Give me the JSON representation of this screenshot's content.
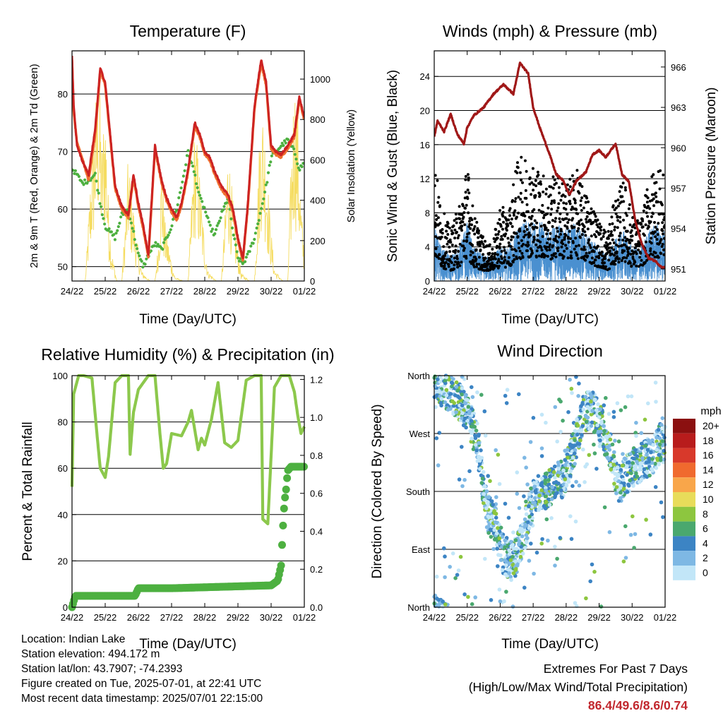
{
  "colors": {
    "temp_2m": "#cc2222",
    "temp_9m": "#f07030",
    "dewpoint": "#4db040",
    "solar": "#f5dc60",
    "wind": "#4a90d0",
    "gust": "#000000",
    "pressure": "#a01818",
    "rh": "#8cc84c",
    "precip": "#4db040",
    "extremes": "#c1272d"
  },
  "time_axis": {
    "label": "Time (Day/UTC)",
    "ticks": [
      "24/22",
      "25/22",
      "26/22",
      "27/22",
      "28/22",
      "29/22",
      "30/22",
      "01/22"
    ]
  },
  "chart_data": [
    {
      "id": "temperature",
      "type": "line",
      "title": "Temperature (F)",
      "ylabel": "2m & 9m T (Red, Orange) & 2m Td (Green)",
      "y2label": "Solar Insolation (Yellow)",
      "ylim": [
        47.5,
        87.5
      ],
      "y2lim": [
        0,
        1140
      ],
      "yticks": [
        50,
        60,
        70,
        80
      ],
      "y2ticks": [
        0,
        200,
        400,
        600,
        800,
        1000
      ],
      "series": [
        {
          "key": "temp_2m",
          "color": "temp_2m",
          "x": [
            0,
            0.05,
            0.15,
            0.3,
            0.5,
            0.7,
            0.85,
            1.0,
            1.15,
            1.3,
            1.5,
            1.7,
            1.85,
            2.0,
            2.15,
            2.3,
            2.5,
            2.7,
            2.85,
            3.0,
            3.15,
            3.3,
            3.5,
            3.7,
            3.85,
            4.0,
            4.15,
            4.3,
            4.5,
            4.7,
            4.85,
            5.0,
            5.15,
            5.3,
            5.5,
            5.7,
            5.85,
            6.0,
            6.15,
            6.3,
            6.5,
            6.7,
            6.85,
            7.0
          ],
          "y": [
            86.5,
            78,
            71,
            68.5,
            66,
            74,
            84.5,
            82,
            73,
            64,
            60.5,
            59,
            66,
            61,
            57,
            52,
            71,
            65,
            62,
            60,
            58.5,
            61,
            67,
            75,
            73,
            70,
            69,
            66.5,
            64,
            62.5,
            60,
            55,
            51.5,
            61,
            78,
            86,
            82,
            71,
            70,
            69.5,
            71,
            73,
            79.5,
            76
          ]
        },
        {
          "key": "temp_9m",
          "color": "temp_9m",
          "x": [
            0,
            0.05,
            0.15,
            0.3,
            0.5,
            0.7,
            0.85,
            1.0,
            1.15,
            1.3,
            1.5,
            1.7,
            1.85,
            2.0,
            2.15,
            2.3,
            2.5,
            2.7,
            2.85,
            3.0,
            3.15,
            3.3,
            3.5,
            3.7,
            3.85,
            4.0,
            4.15,
            4.3,
            4.5,
            4.7,
            4.85,
            5.0,
            5.15,
            5.3,
            5.5,
            5.7,
            5.85,
            6.0,
            6.15,
            6.3,
            6.5,
            6.7,
            6.85,
            7.0
          ],
          "y": [
            86,
            77,
            71.5,
            69,
            65,
            73,
            84,
            81.5,
            72.5,
            63.5,
            60,
            58.5,
            65.5,
            60.5,
            56.5,
            51.5,
            70.5,
            64.5,
            61.5,
            59.5,
            58,
            60.5,
            66.5,
            74.5,
            72.5,
            69.5,
            68.5,
            66,
            63.5,
            62,
            59.5,
            54.5,
            51,
            60.5,
            77.5,
            85.5,
            81.5,
            70.5,
            69.5,
            69,
            70.5,
            72.5,
            79,
            75.5
          ]
        },
        {
          "key": "dewpoint",
          "color": "dewpoint",
          "dotted": true,
          "x": [
            0,
            0.15,
            0.3,
            0.5,
            0.7,
            0.85,
            1.0,
            1.15,
            1.3,
            1.5,
            1.7,
            1.85,
            2.0,
            2.15,
            2.3,
            2.5,
            2.7,
            2.85,
            3.0,
            3.15,
            3.3,
            3.5,
            3.7,
            3.85,
            4.0,
            4.15,
            4.3,
            4.5,
            4.7,
            4.85,
            5.0,
            5.15,
            5.3,
            5.5,
            5.7,
            5.85,
            6.0,
            6.15,
            6.3,
            6.5,
            6.7,
            6.85,
            7.0
          ],
          "y": [
            67,
            66,
            64.5,
            65,
            66,
            61,
            57,
            56,
            55,
            59,
            60,
            56,
            52,
            50,
            52,
            54,
            53,
            55,
            57,
            60,
            64,
            70,
            66,
            62,
            60,
            57,
            55.5,
            59,
            62,
            56,
            51.5,
            50.5,
            52,
            55,
            60,
            64,
            69,
            70,
            71,
            72,
            70,
            67,
            68
          ]
        },
        {
          "key": "solar",
          "color": "solar",
          "axis": "y2",
          "x": [
            0,
            0.4,
            0.55,
            0.7,
            0.8,
            0.9,
            1.0,
            1.1,
            1.2,
            1.35,
            1.5,
            1.6,
            1.7,
            1.8,
            1.9,
            2.0,
            2.1,
            2.35,
            2.5,
            2.6,
            2.7,
            2.8,
            2.9,
            3.0,
            3.1,
            3.35,
            3.5,
            3.6,
            3.7,
            3.8,
            3.9,
            4.0,
            4.1,
            4.35,
            4.5,
            4.6,
            4.7,
            4.8,
            4.9,
            5.0,
            5.1,
            5.35,
            5.5,
            5.6,
            5.7,
            5.8,
            5.9,
            6.0,
            6.1,
            6.35,
            6.5,
            6.6,
            6.7,
            6.8,
            6.9,
            7.0
          ],
          "y": [
            0,
            0,
            500,
            900,
            1100,
            700,
            950,
            400,
            150,
            0,
            0,
            300,
            650,
            450,
            300,
            150,
            50,
            0,
            0,
            200,
            600,
            300,
            200,
            100,
            20,
            0,
            0,
            400,
            800,
            650,
            400,
            200,
            50,
            0,
            0,
            300,
            700,
            500,
            300,
            150,
            40,
            0,
            0,
            500,
            950,
            800,
            500,
            250,
            60,
            0,
            0,
            600,
            1050,
            850,
            400,
            150
          ]
        }
      ]
    },
    {
      "id": "winds",
      "type": "scatter",
      "title": "Winds (mph) & Pressure (mb)",
      "ylabel": "Sonic Wind & Gust (Blue, Black)",
      "y2label": "Station Pressure (Maroon)",
      "ylim": [
        0,
        27
      ],
      "y2lim": [
        950.1,
        967.2
      ],
      "yticks": [
        0,
        4,
        8,
        12,
        16,
        20,
        24
      ],
      "y2ticks": [
        951,
        954,
        957,
        960,
        963,
        966
      ],
      "series": [
        {
          "key": "gust_upper",
          "color": "gust",
          "x": [
            0,
            0.2,
            0.5,
            0.75,
            1.0,
            1.2,
            1.5,
            1.75,
            2.0,
            2.25,
            2.5,
            2.75,
            3.0,
            3.25,
            3.5,
            3.75,
            4.0,
            4.25,
            4.5,
            4.75,
            5.0,
            5.25,
            5.5,
            5.75,
            6.0,
            6.25,
            6.5,
            6.75,
            7.0
          ],
          "y": [
            15,
            9,
            6,
            9,
            14,
            8,
            5,
            4,
            9,
            8,
            14,
            15,
            14,
            13,
            12,
            13,
            11,
            14,
            11,
            10,
            7,
            6,
            10,
            12,
            8,
            7,
            12,
            14,
            12
          ]
        },
        {
          "key": "wind_upper",
          "color": "wind",
          "x": [
            0,
            0.2,
            0.5,
            0.75,
            1.0,
            1.2,
            1.5,
            1.75,
            2.0,
            2.25,
            2.5,
            2.75,
            3.0,
            3.25,
            3.5,
            3.75,
            4.0,
            4.25,
            4.5,
            4.75,
            5.0,
            5.25,
            5.5,
            5.75,
            6.0,
            6.25,
            6.5,
            6.75,
            7.0
          ],
          "y": [
            7,
            4,
            3,
            4,
            7,
            4,
            3,
            3,
            4,
            4,
            6,
            7,
            7,
            7,
            6,
            7,
            6,
            7,
            6,
            5,
            4,
            3,
            5,
            6,
            4,
            4,
            6,
            7,
            6
          ]
        },
        {
          "key": "pressure",
          "color": "pressure",
          "axis": "y2",
          "x": [
            0,
            0.1,
            0.3,
            0.5,
            0.7,
            0.9,
            1.0,
            1.2,
            1.5,
            1.8,
            2.1,
            2.4,
            2.6,
            2.85,
            3.0,
            3.2,
            3.5,
            3.7,
            3.9,
            4.1,
            4.3,
            4.6,
            4.8,
            5.0,
            5.2,
            5.5,
            5.7,
            5.9,
            6.1,
            6.3,
            6.5,
            6.7,
            6.9,
            7.0
          ],
          "y": [
            960.8,
            962,
            961.2,
            962.5,
            961,
            960.3,
            961.5,
            962.4,
            963,
            964,
            964.7,
            964,
            966.3,
            965.5,
            963,
            961.5,
            959.5,
            958,
            957.6,
            956.5,
            957.5,
            958.2,
            959.5,
            959.8,
            959.3,
            960.3,
            958,
            957.5,
            954.5,
            952.8,
            951.8,
            951.6,
            951.1,
            951.1
          ]
        }
      ]
    },
    {
      "id": "humidity",
      "type": "line",
      "title": "Relative Humidity (%) & Precipitation (in)",
      "ylabel": "Percent & Total Rainfall",
      "ylim": [
        0,
        100
      ],
      "y2lim": [
        0,
        1.22
      ],
      "yticks": [
        0,
        20,
        40,
        60,
        80,
        100
      ],
      "y2ticks": [
        0.0,
        0.2,
        0.4,
        0.6,
        0.8,
        1.0,
        1.2
      ],
      "series": [
        {
          "key": "rh",
          "color": "rh",
          "x": [
            0,
            0.05,
            0.2,
            0.35,
            0.6,
            0.75,
            0.85,
            1.0,
            1.1,
            1.3,
            1.5,
            1.7,
            1.75,
            1.85,
            2.0,
            2.15,
            2.3,
            2.5,
            2.65,
            2.75,
            2.85,
            3.0,
            3.3,
            3.5,
            3.6,
            3.8,
            3.9,
            4.0,
            4.2,
            4.4,
            4.6,
            4.8,
            5.0,
            5.25,
            5.5,
            5.7,
            5.75,
            5.9,
            6.1,
            6.3,
            6.55,
            6.7,
            6.8,
            6.9,
            7.0
          ],
          "y": [
            52,
            92,
            100,
            100,
            99,
            75,
            60,
            56,
            65,
            97,
            100,
            100,
            66,
            84,
            94,
            97,
            100,
            100,
            75,
            60,
            62,
            75,
            74,
            80,
            85,
            68,
            73,
            70,
            81,
            97,
            71,
            69,
            72,
            98,
            100,
            100,
            38,
            36,
            95,
            100,
            100,
            93,
            83,
            75,
            78
          ]
        },
        {
          "key": "precip",
          "color": "precip",
          "axis": "y2",
          "x": [
            0,
            0.05,
            0.1,
            1.0,
            1.9,
            2.0,
            3.0,
            4.0,
            5.0,
            6.0,
            6.2,
            6.3,
            6.35,
            6.4,
            6.45,
            6.5,
            6.6,
            6.8,
            7.0
          ],
          "y": [
            0,
            0.03,
            0.06,
            0.06,
            0.06,
            0.1,
            0.1,
            0.105,
            0.11,
            0.115,
            0.14,
            0.22,
            0.4,
            0.55,
            0.62,
            0.72,
            0.74,
            0.74,
            0.74
          ]
        }
      ]
    },
    {
      "id": "direction",
      "type": "scatter",
      "title": "Wind Direction",
      "ylabel": "Direction (Colored By Speed)",
      "ylim": [
        0,
        360
      ],
      "ytick_labels": [
        "North",
        "East",
        "South",
        "West",
        "North"
      ],
      "yticks": [
        0,
        90,
        180,
        270,
        360
      ],
      "legend": {
        "title": "mph",
        "labels": [
          "20+",
          "18",
          "16",
          "14",
          "12",
          "10",
          "8",
          "6",
          "4",
          "2",
          "0"
        ],
        "colors": [
          "#8b1010",
          "#b81c1c",
          "#d8392b",
          "#f06a2e",
          "#f9a64a",
          "#e8dc5a",
          "#8dc63f",
          "#4aa86e",
          "#3c84c4",
          "#7eb8e4",
          "#c2e6f8"
        ]
      },
      "series": [
        {
          "key": "dir_trend",
          "x": [
            0,
            0.3,
            0.5,
            0.8,
            1.0,
            1.3,
            1.6,
            1.9,
            2.1,
            2.4,
            2.7,
            3.0,
            3.3,
            3.6,
            3.9,
            4.2,
            4.5,
            4.8,
            5.0,
            5.3,
            5.6,
            5.9,
            6.1,
            6.4,
            6.7,
            6.9,
            7.0
          ],
          "y": [
            350,
            340,
            330,
            320,
            300,
            260,
            150,
            120,
            80,
            70,
            110,
            170,
            180,
            190,
            200,
            240,
            300,
            310,
            290,
            250,
            190,
            210,
            220,
            230,
            240,
            260,
            250
          ]
        }
      ]
    }
  ],
  "footer": {
    "location": "Location: Indian Lake",
    "elevation": "Station elevation: 494.172 m",
    "latlon": "Station lat/lon: 43.7907; -74.2393",
    "created": "Figure created on Tue, 2025-07-01, at 22:41 UTC",
    "recent": "Most recent data timestamp: 2025/07/01 22:15:00"
  },
  "extremes": {
    "title": "Extremes For Past 7 Days",
    "subtitle": "(High/Low/Max Wind/Total Precipitation)",
    "values": "86.4/49.6/8.6/0.74"
  }
}
